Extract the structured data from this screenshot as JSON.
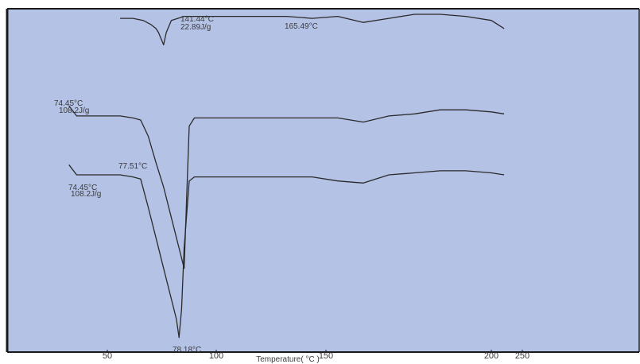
{
  "chart_data": {
    "type": "line",
    "title": "",
    "xlabel": "Temperature( °C )",
    "ylabel": "",
    "x_ticks": [
      "50",
      "100",
      "150",
      "200",
      "250"
    ],
    "grid": false,
    "annotations": [
      {
        "text": "141.44°C",
        "series": 0
      },
      {
        "text": "22.89J/g",
        "series": 0
      },
      {
        "text": "165.49°C",
        "series": 0
      },
      {
        "text": "74.45°C",
        "series": 1
      },
      {
        "text": "108.2J/g",
        "series": 1
      },
      {
        "text": "77.51°C",
        "series": 1
      },
      {
        "text": "74.45°C",
        "series": 2
      },
      {
        "text": "108.2J/g",
        "series": 2
      },
      {
        "text": "78.18°C",
        "series": 2
      }
    ],
    "series": [
      {
        "x": [
          55,
          60,
          64,
          67,
          69,
          70,
          71,
          72,
          73,
          75,
          80,
          90,
          100,
          110,
          120,
          130,
          140,
          150,
          160,
          170,
          180,
          190,
          200,
          205
        ],
        "y": [
          16.3,
          16.3,
          16.2,
          16.0,
          15.8,
          15.6,
          15.3,
          15.0,
          15.6,
          16.2,
          16.4,
          16.4,
          16.4,
          16.4,
          16.4,
          16.3,
          16.4,
          16.1,
          16.3,
          16.5,
          16.5,
          16.4,
          16.2,
          15.8
        ]
      },
      {
        "x": [
          35,
          38,
          45,
          55,
          60,
          63,
          66,
          69,
          72,
          75,
          78,
          80,
          82,
          84,
          90,
          100,
          110,
          120,
          130,
          140,
          150,
          160,
          170,
          180,
          190,
          200,
          205
        ],
        "y": [
          12.0,
          11.5,
          11.5,
          11.5,
          11.4,
          11.3,
          10.5,
          9.2,
          8.0,
          6.5,
          5.0,
          4.0,
          11.0,
          11.4,
          11.4,
          11.4,
          11.4,
          11.4,
          11.4,
          11.4,
          11.2,
          11.5,
          11.6,
          11.8,
          11.8,
          11.7,
          11.6
        ]
      },
      {
        "x": [
          35,
          38,
          45,
          55,
          60,
          63,
          66,
          69,
          72,
          75,
          77,
          78,
          79,
          80,
          82,
          84,
          90,
          100,
          110,
          120,
          130,
          140,
          150,
          160,
          170,
          180,
          190,
          200,
          205
        ],
        "y": [
          9.1,
          8.6,
          8.6,
          8.6,
          8.5,
          8.4,
          7.0,
          5.5,
          4.0,
          2.5,
          1.5,
          0.6,
          2.0,
          5.0,
          8.3,
          8.5,
          8.5,
          8.5,
          8.5,
          8.5,
          8.5,
          8.3,
          8.2,
          8.6,
          8.7,
          8.8,
          8.8,
          8.7,
          8.6
        ]
      }
    ],
    "colors": {
      "background": "#b4c2e6",
      "curve": "#2a2a2a",
      "frame": "#1a1a1a"
    }
  }
}
